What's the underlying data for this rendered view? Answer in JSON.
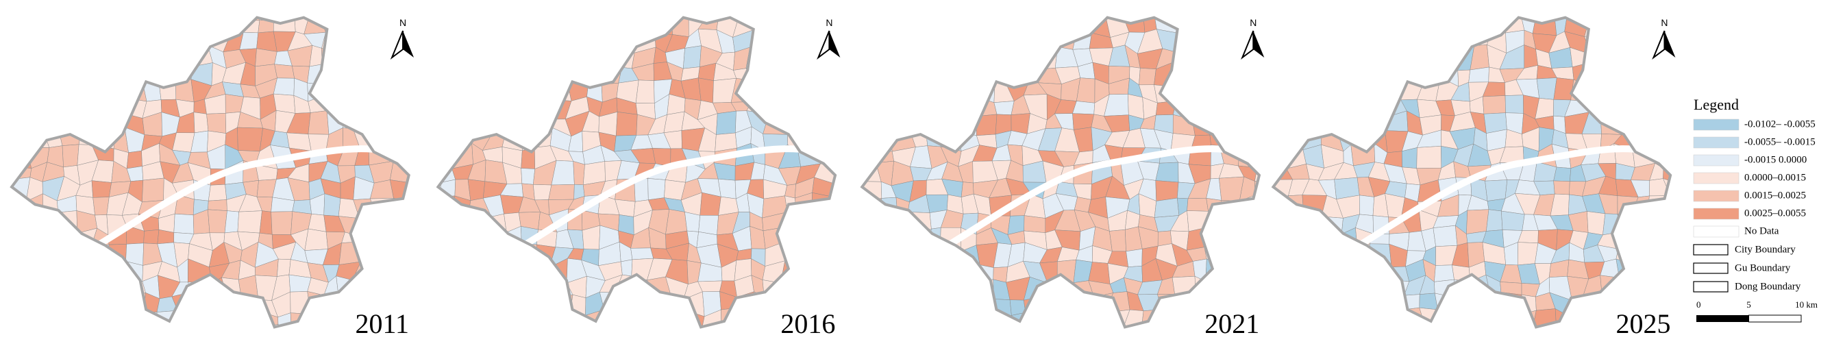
{
  "maps": [
    {
      "year": "2011",
      "north": "N"
    },
    {
      "year": "2016",
      "north": "N"
    },
    {
      "year": "2021",
      "north": "N"
    },
    {
      "year": "2025",
      "north": "N"
    }
  ],
  "legend": {
    "title": "Legend",
    "items": [
      {
        "label": "-0.0102– -0.0055",
        "color": "#a9cfe4"
      },
      {
        "label": "-0.0055– -0.0015",
        "color": "#c4dcec"
      },
      {
        "label": "-0.0015  0.0000",
        "color": "#e4edf6"
      },
      {
        "label": "0.0000–0.0015",
        "color": "#fbe4db"
      },
      {
        "label": "0.0015–0.0025",
        "color": "#f5c2ae"
      },
      {
        "label": "0.0025–0.0055",
        "color": "#ef9d80"
      },
      {
        "label": "No Data",
        "color": "#ffffff"
      }
    ],
    "boundaries": [
      "City Boundary",
      "Gu Boundary",
      "Dong Boundary"
    ],
    "scale": [
      "0",
      "5",
      "10 km"
    ]
  }
}
